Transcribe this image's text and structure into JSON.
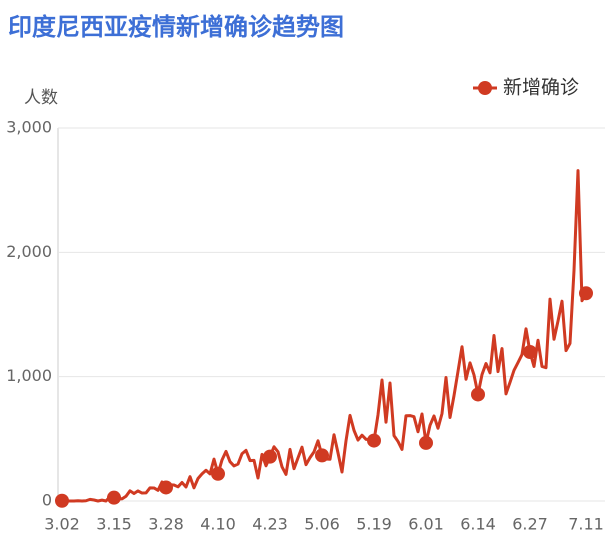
{
  "chart_data": {
    "type": "line",
    "title": "印度尼西亚疫情新增确诊趋势图",
    "y_label": "人数",
    "categories": [
      "3.02",
      null,
      null,
      null,
      null,
      null,
      null,
      null,
      null,
      null,
      null,
      null,
      null,
      "3.15",
      null,
      null,
      null,
      null,
      null,
      null,
      null,
      null,
      null,
      null,
      null,
      null,
      "3.28",
      null,
      null,
      null,
      null,
      null,
      null,
      null,
      null,
      null,
      null,
      null,
      null,
      "4.10",
      null,
      null,
      null,
      null,
      null,
      null,
      null,
      null,
      null,
      null,
      null,
      null,
      "4.23",
      null,
      null,
      null,
      null,
      null,
      null,
      null,
      null,
      null,
      null,
      null,
      null,
      "5.06",
      null,
      null,
      null,
      null,
      null,
      null,
      null,
      null,
      null,
      null,
      null,
      null,
      "5.19",
      null,
      null,
      null,
      null,
      null,
      null,
      null,
      null,
      null,
      null,
      null,
      null,
      "6.01",
      null,
      null,
      null,
      null,
      null,
      null,
      null,
      null,
      null,
      null,
      null,
      null,
      "6.14",
      null,
      null,
      null,
      null,
      null,
      null,
      null,
      null,
      null,
      null,
      null,
      null,
      "6.27",
      null,
      null,
      null,
      null,
      null,
      null,
      null,
      null,
      null,
      null,
      null,
      null,
      null,
      "7.11"
    ],
    "series": [
      {
        "name": "新增确诊",
        "color": "#d03a22",
        "values": [
          2,
          0,
          0,
          0,
          2,
          0,
          2,
          13,
          8,
          0,
          7,
          0,
          35,
          27,
          21,
          17,
          38,
          82,
          60,
          81,
          64,
          65,
          106,
          105,
          86,
          153,
          109,
          130,
          129,
          114,
          149,
          113,
          196,
          106,
          181,
          218,
          247,
          218,
          337,
          219,
          330,
          399,
          316,
          282,
          297,
          380,
          407,
          325,
          327,
          185,
          375,
          283,
          357,
          436,
          396,
          275,
          214,
          415,
          260,
          347,
          433,
          292,
          349,
          395,
          484,
          367,
          338,
          336,
          533,
          387,
          233,
          484,
          689,
          568,
          490,
          529,
          496,
          496,
          486,
          693,
          973,
          634,
          949,
          526,
          479,
          415,
          686,
          687,
          678,
          557,
          700,
          467,
          609,
          684,
          585,
          703,
          993,
          672,
          847,
          1043,
          1241,
          979,
          1111,
          1014,
          857,
          1017,
          1106,
          1031,
          1331,
          1041,
          1226,
          862,
          954,
          1051,
          1113,
          1178,
          1385,
          1198,
          1082,
          1293,
          1082,
          1072,
          1624,
          1301,
          1447,
          1607,
          1209,
          1268,
          1853,
          2657,
          1611,
          1671
        ]
      }
    ],
    "ylim": [
      0,
      3000
    ],
    "yticks": [
      0,
      {
        "value": 1000,
        "label": "1,000"
      },
      {
        "value": 2000,
        "label": "2,000"
      },
      {
        "value": 3000,
        "label": "3,000"
      }
    ],
    "grid": true,
    "legend": "top-right"
  }
}
